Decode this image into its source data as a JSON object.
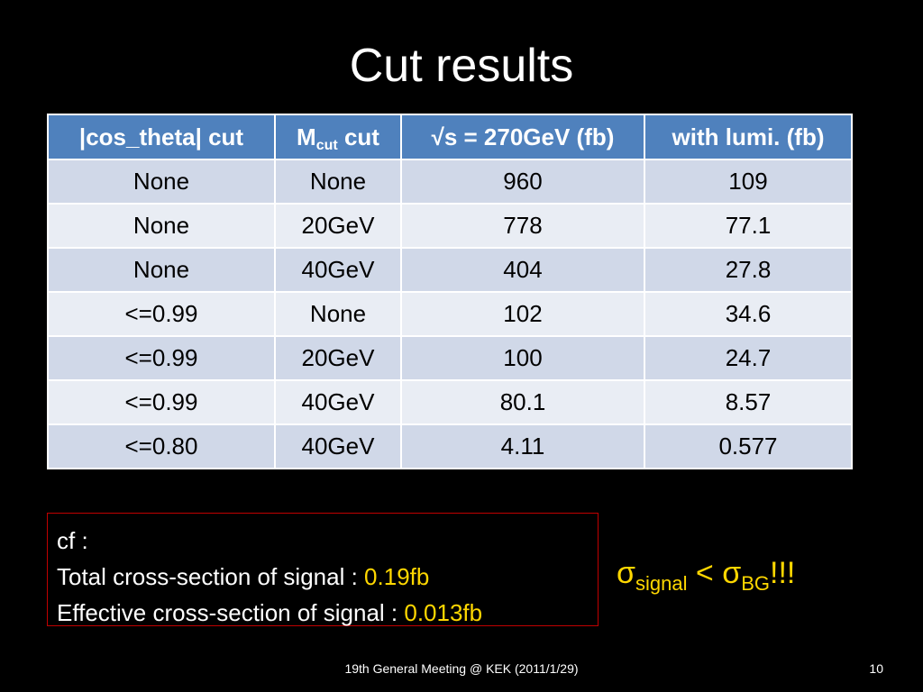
{
  "slide": {
    "title": "Cut results",
    "footer": "19th General Meeting @ KEK (2011/1/29)",
    "page_number": "10"
  },
  "table": {
    "headers": {
      "cos_cut": "|cos_theta| cut",
      "mcut_main": "M",
      "mcut_sub": "cut",
      "mcut_suffix": " cut",
      "sqrt_s": "√s = 270GeV (fb)",
      "lumi": "with lumi. (fb)"
    },
    "rows": [
      [
        "None",
        "None",
        "960",
        "109"
      ],
      [
        "None",
        "20GeV",
        "778",
        "77.1"
      ],
      [
        "None",
        "40GeV",
        "404",
        "27.8"
      ],
      [
        "<=0.99",
        "None",
        "102",
        "34.6"
      ],
      [
        "<=0.99",
        "20GeV",
        "100",
        "24.7"
      ],
      [
        "<=0.99",
        "40GeV",
        "80.1",
        "8.57"
      ],
      [
        "<=0.80",
        "40GeV",
        "4.11",
        "0.577"
      ]
    ]
  },
  "cf_box": {
    "line1": "cf :",
    "total_label": "Total cross-section of signal : ",
    "total_value": "0.19fb",
    "effective_label": "Effective cross-section of signal : ",
    "effective_value": "0.013fb"
  },
  "sigma_note": {
    "sigma1": "σ",
    "sub1": "signal",
    "lt": " < ",
    "sigma2": "σ",
    "sub2": "BG",
    "excl": "!!!"
  },
  "colors": {
    "background": "#000000",
    "header_blue": "#4f81bd",
    "row_odd": "#d0d8e8",
    "row_even": "#e9edf4",
    "highlight": "#ffd700",
    "box_border": "#c00000"
  }
}
